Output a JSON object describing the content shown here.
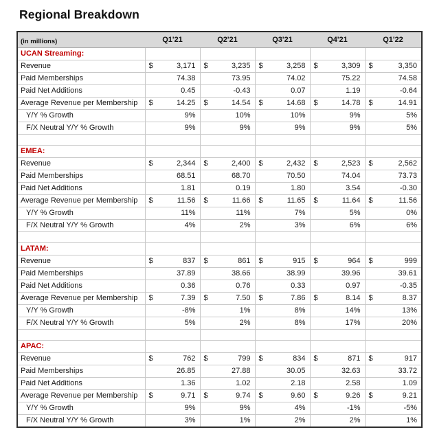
{
  "page_title": "Regional Breakdown",
  "table": {
    "unit_label": "(in millions)",
    "currency_symbol": "$",
    "quarters": [
      "Q1'21",
      "Q2'21",
      "Q3'21",
      "Q4'21",
      "Q1'22"
    ],
    "colors": {
      "section_header_text": "#C00000",
      "header_bg": "#D9D9D9",
      "grid_line": "#C9C9C9",
      "outer_border": "#2E2E2E",
      "body_text": "#1A1A1A"
    },
    "sections": [
      {
        "name": "UCAN Streaming:",
        "rows": [
          {
            "label": "Revenue",
            "currency": true,
            "indent": false,
            "values": [
              "3,171",
              "3,235",
              "3,258",
              "3,309",
              "3,350"
            ]
          },
          {
            "label": "Paid Memberships",
            "currency": false,
            "indent": false,
            "values": [
              "74.38",
              "73.95",
              "74.02",
              "75.22",
              "74.58"
            ]
          },
          {
            "label": "Paid Net Additions",
            "currency": false,
            "indent": false,
            "values": [
              "0.45",
              "-0.43",
              "0.07",
              "1.19",
              "-0.64"
            ]
          },
          {
            "label": "Average Revenue per Membership",
            "currency": true,
            "indent": false,
            "values": [
              "14.25",
              "14.54",
              "14.68",
              "14.78",
              "14.91"
            ]
          },
          {
            "label": "Y/Y % Growth",
            "currency": false,
            "indent": true,
            "values": [
              "9%",
              "10%",
              "10%",
              "9%",
              "5%"
            ]
          },
          {
            "label": "F/X Neutral Y/Y % Growth",
            "currency": false,
            "indent": true,
            "values": [
              "9%",
              "9%",
              "9%",
              "9%",
              "5%"
            ]
          }
        ]
      },
      {
        "name": "EMEA:",
        "rows": [
          {
            "label": "Revenue",
            "currency": true,
            "indent": false,
            "values": [
              "2,344",
              "2,400",
              "2,432",
              "2,523",
              "2,562"
            ]
          },
          {
            "label": "Paid Memberships",
            "currency": false,
            "indent": false,
            "values": [
              "68.51",
              "68.70",
              "70.50",
              "74.04",
              "73.73"
            ]
          },
          {
            "label": "Paid Net Additions",
            "currency": false,
            "indent": false,
            "values": [
              "1.81",
              "0.19",
              "1.80",
              "3.54",
              "-0.30"
            ]
          },
          {
            "label": "Average Revenue per Membership",
            "currency": true,
            "indent": false,
            "values": [
              "11.56",
              "11.66",
              "11.65",
              "11.64",
              "11.56"
            ]
          },
          {
            "label": "Y/Y % Growth",
            "currency": false,
            "indent": true,
            "values": [
              "11%",
              "11%",
              "7%",
              "5%",
              "0%"
            ]
          },
          {
            "label": "F/X Neutral Y/Y % Growth",
            "currency": false,
            "indent": true,
            "values": [
              "4%",
              "2%",
              "3%",
              "6%",
              "6%"
            ]
          }
        ]
      },
      {
        "name": "LATAM:",
        "rows": [
          {
            "label": "Revenue",
            "currency": true,
            "indent": false,
            "values": [
              "837",
              "861",
              "915",
              "964",
              "999"
            ]
          },
          {
            "label": "Paid Memberships",
            "currency": false,
            "indent": false,
            "values": [
              "37.89",
              "38.66",
              "38.99",
              "39.96",
              "39.61"
            ]
          },
          {
            "label": "Paid Net Additions",
            "currency": false,
            "indent": false,
            "values": [
              "0.36",
              "0.76",
              "0.33",
              "0.97",
              "-0.35"
            ]
          },
          {
            "label": "Average Revenue per Membership",
            "currency": true,
            "indent": false,
            "values": [
              "7.39",
              "7.50",
              "7.86",
              "8.14",
              "8.37"
            ]
          },
          {
            "label": "Y/Y % Growth",
            "currency": false,
            "indent": true,
            "values": [
              "-8%",
              "1%",
              "8%",
              "14%",
              "13%"
            ]
          },
          {
            "label": "F/X Neutral Y/Y % Growth",
            "currency": false,
            "indent": true,
            "values": [
              "5%",
              "2%",
              "8%",
              "17%",
              "20%"
            ]
          }
        ]
      },
      {
        "name": "APAC:",
        "rows": [
          {
            "label": "Revenue",
            "currency": true,
            "indent": false,
            "values": [
              "762",
              "799",
              "834",
              "871",
              "917"
            ]
          },
          {
            "label": "Paid Memberships",
            "currency": false,
            "indent": false,
            "values": [
              "26.85",
              "27.88",
              "30.05",
              "32.63",
              "33.72"
            ]
          },
          {
            "label": "Paid Net Additions",
            "currency": false,
            "indent": false,
            "values": [
              "1.36",
              "1.02",
              "2.18",
              "2.58",
              "1.09"
            ]
          },
          {
            "label": "Average Revenue per Membership",
            "currency": true,
            "indent": false,
            "values": [
              "9.71",
              "9.74",
              "9.60",
              "9.26",
              "9.21"
            ]
          },
          {
            "label": "Y/Y % Growth",
            "currency": false,
            "indent": true,
            "values": [
              "9%",
              "9%",
              "4%",
              "-1%",
              "-5%"
            ]
          },
          {
            "label": "F/X Neutral Y/Y % Growth",
            "currency": false,
            "indent": true,
            "values": [
              "3%",
              "1%",
              "2%",
              "2%",
              "1%"
            ]
          }
        ]
      }
    ]
  }
}
